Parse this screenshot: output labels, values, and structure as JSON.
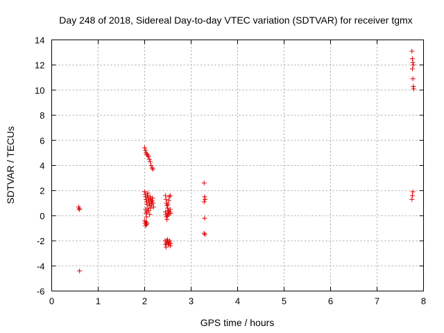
{
  "chart_data": {
    "type": "scatter",
    "title": "Day 248 of 2018, Sidereal Day-to-day VTEC variation (SDTVAR) for receiver tgmx",
    "xlabel": "GPS time / hours",
    "ylabel": "SDTVAR / TECUs",
    "xlim": [
      0,
      8
    ],
    "ylim": [
      -6,
      14
    ],
    "x_ticks": [
      0,
      1,
      2,
      3,
      4,
      5,
      6,
      7,
      8
    ],
    "y_ticks": [
      -6,
      -4,
      -2,
      0,
      2,
      4,
      6,
      8,
      10,
      12,
      14
    ],
    "grid": true,
    "marker": "+",
    "series_color": "#e00000",
    "series": [
      {
        "name": "SDTVAR",
        "points": [
          [
            0.58,
            0.7
          ],
          [
            0.59,
            0.5
          ],
          [
            0.6,
            0.55
          ],
          [
            0.6,
            -4.4
          ],
          [
            2.0,
            5.4
          ],
          [
            2.02,
            5.2
          ],
          [
            2.03,
            5.0
          ],
          [
            2.05,
            4.9
          ],
          [
            2.07,
            4.8
          ],
          [
            2.08,
            4.7
          ],
          [
            2.1,
            4.5
          ],
          [
            2.12,
            4.3
          ],
          [
            2.14,
            4.0
          ],
          [
            2.16,
            3.8
          ],
          [
            2.18,
            3.7
          ],
          [
            2.0,
            1.9
          ],
          [
            2.01,
            1.7
          ],
          [
            2.02,
            1.5
          ],
          [
            2.03,
            1.3
          ],
          [
            2.04,
            1.1
          ],
          [
            2.05,
            0.9
          ],
          [
            2.06,
            1.6
          ],
          [
            2.07,
            1.8
          ],
          [
            2.08,
            1.4
          ],
          [
            2.09,
            1.2
          ],
          [
            2.1,
            1.0
          ],
          [
            2.11,
            0.8
          ],
          [
            2.12,
            1.5
          ],
          [
            2.13,
            1.3
          ],
          [
            2.14,
            1.1
          ],
          [
            2.15,
            0.9
          ],
          [
            2.16,
            1.2
          ],
          [
            2.17,
            1.4
          ],
          [
            2.18,
            1.0
          ],
          [
            2.19,
            0.7
          ],
          [
            2.02,
            0.5
          ],
          [
            2.03,
            0.2
          ],
          [
            2.04,
            -0.1
          ],
          [
            2.05,
            0.3
          ],
          [
            2.07,
            0.6
          ],
          [
            2.09,
            0.4
          ],
          [
            2.11,
            0.1
          ],
          [
            2.13,
            0.6
          ],
          [
            2.0,
            -0.4
          ],
          [
            2.01,
            -0.6
          ],
          [
            2.02,
            -0.8
          ],
          [
            2.03,
            -0.5
          ],
          [
            2.04,
            -0.7
          ],
          [
            2.05,
            -0.6
          ],
          [
            2.45,
            1.6
          ],
          [
            2.46,
            1.3
          ],
          [
            2.47,
            1.0
          ],
          [
            2.48,
            0.8
          ],
          [
            2.49,
            0.6
          ],
          [
            2.5,
            0.9
          ],
          [
            2.52,
            1.2
          ],
          [
            2.53,
            1.5
          ],
          [
            2.55,
            1.6
          ],
          [
            2.45,
            0.3
          ],
          [
            2.46,
            0.1
          ],
          [
            2.47,
            -0.1
          ],
          [
            2.48,
            -0.3
          ],
          [
            2.49,
            0.0
          ],
          [
            2.5,
            0.2
          ],
          [
            2.51,
            0.4
          ],
          [
            2.52,
            0.1
          ],
          [
            2.53,
            0.3
          ],
          [
            2.55,
            0.5
          ],
          [
            2.56,
            0.2
          ],
          [
            2.44,
            -2.0
          ],
          [
            2.45,
            -2.3
          ],
          [
            2.46,
            -2.5
          ],
          [
            2.47,
            -2.2
          ],
          [
            2.48,
            -2.0
          ],
          [
            2.49,
            -1.9
          ],
          [
            2.5,
            -2.1
          ],
          [
            2.51,
            -2.3
          ],
          [
            2.52,
            -2.2
          ],
          [
            2.54,
            -2.0
          ],
          [
            2.55,
            -2.4
          ],
          [
            2.56,
            -2.2
          ],
          [
            3.28,
            2.6
          ],
          [
            3.29,
            1.5
          ],
          [
            3.3,
            1.3
          ],
          [
            3.28,
            1.1
          ],
          [
            3.29,
            -0.2
          ],
          [
            3.28,
            -1.4
          ],
          [
            3.3,
            -1.5
          ],
          [
            7.75,
            13.1
          ],
          [
            7.76,
            12.5
          ],
          [
            7.77,
            12.2
          ],
          [
            7.78,
            12.0
          ],
          [
            7.76,
            11.7
          ],
          [
            7.77,
            10.9
          ],
          [
            7.78,
            10.3
          ],
          [
            7.79,
            10.1
          ],
          [
            7.75,
            1.3
          ],
          [
            7.76,
            1.6
          ],
          [
            7.77,
            1.9
          ]
        ]
      }
    ]
  }
}
